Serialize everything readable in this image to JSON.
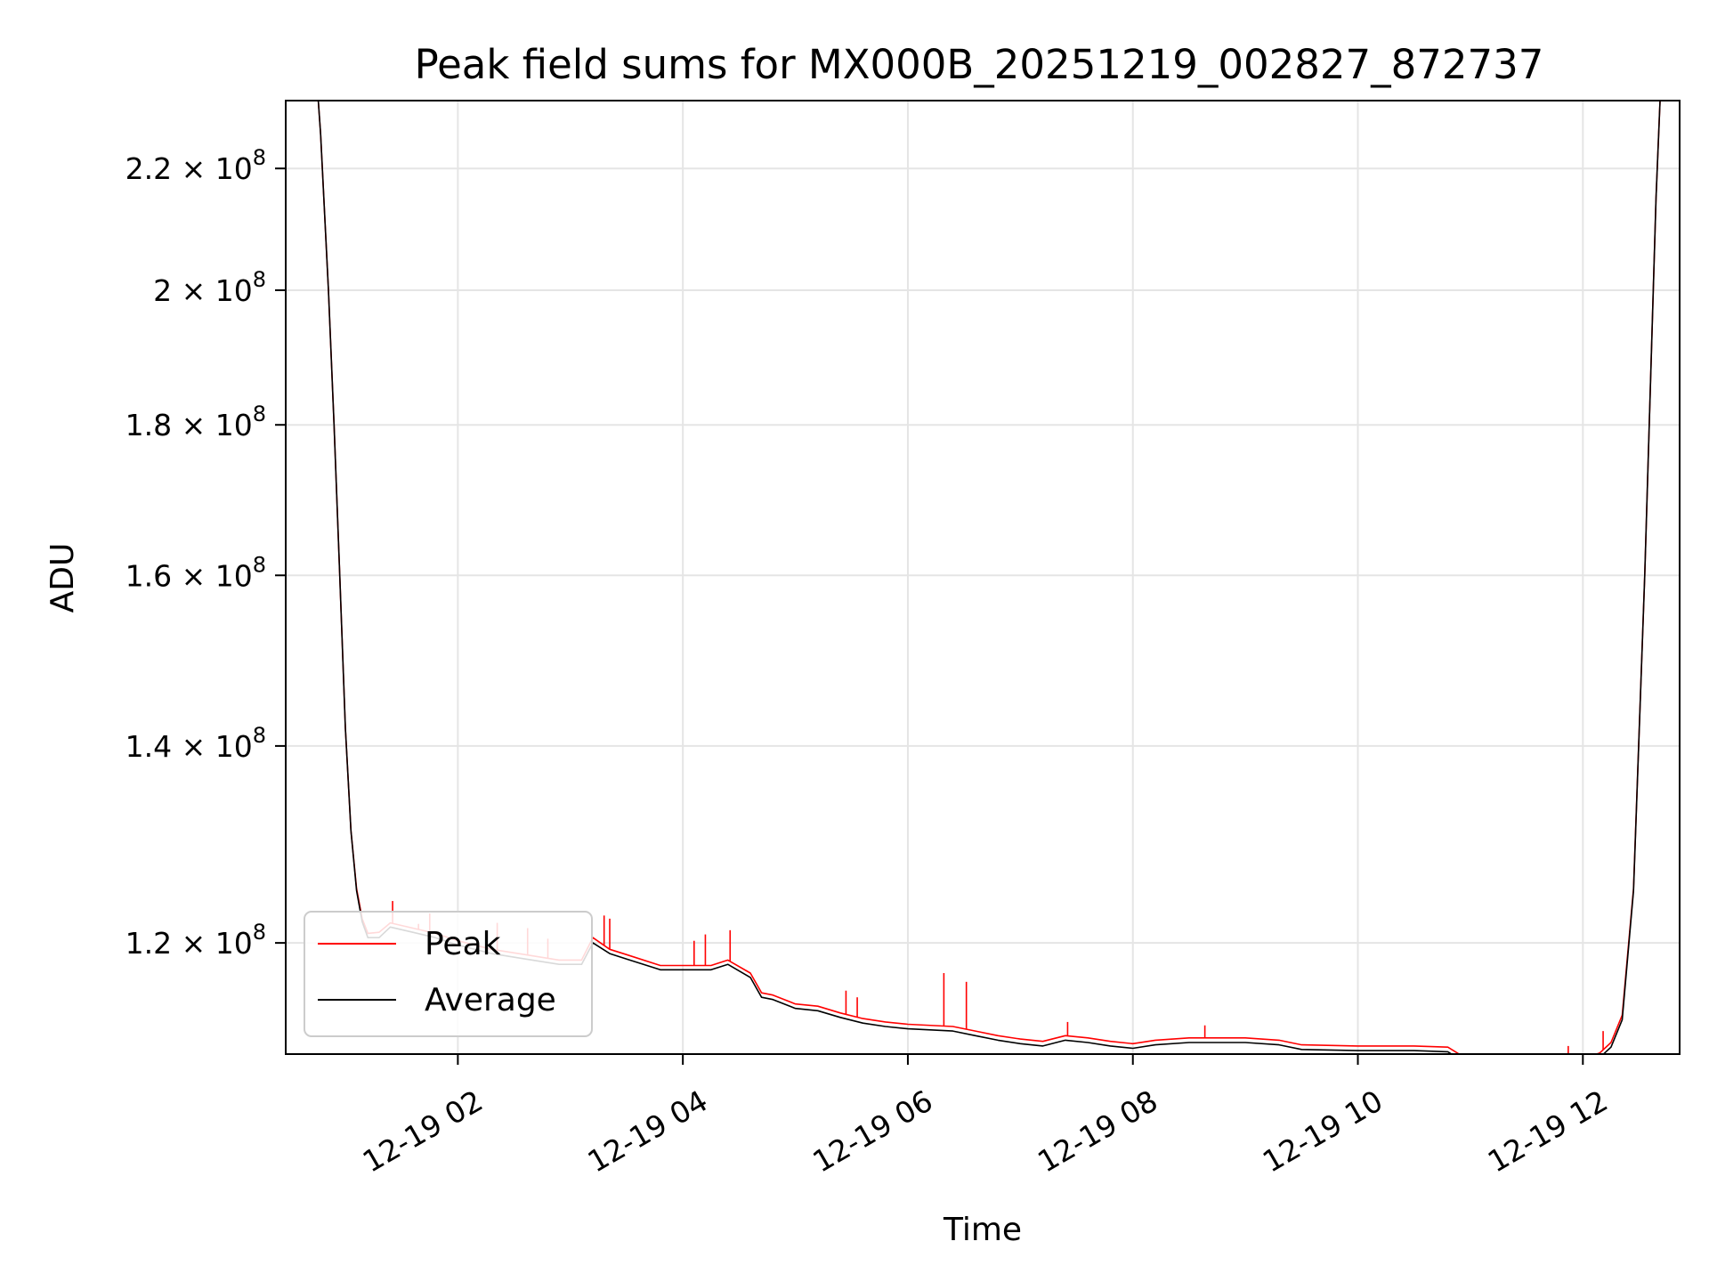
{
  "chart_data": {
    "type": "line",
    "title": "Peak field sums for MX000B_20251219_002827_872737",
    "xlabel": "Time",
    "ylabel": "ADU",
    "yscale": "log",
    "grid": true,
    "legend": {
      "placement": "lower-left",
      "entries": [
        {
          "name": "Peak",
          "color": "#ff0000"
        },
        {
          "name": "Average",
          "color": "#000000"
        }
      ]
    },
    "xlim_hours": [
      0.47,
      12.86
    ],
    "ylim": [
      110000000,
      232000000
    ],
    "x_ticks": [
      {
        "value": 2,
        "label": "12-19 02"
      },
      {
        "value": 4,
        "label": "12-19 04"
      },
      {
        "value": 6,
        "label": "12-19 06"
      },
      {
        "value": 8,
        "label": "12-19 08"
      },
      {
        "value": 10,
        "label": "12-19 10"
      },
      {
        "value": 12,
        "label": "12-19 12"
      }
    ],
    "y_ticks": [
      {
        "value": 120000000,
        "mantissa": "1.2",
        "exp": "8"
      },
      {
        "value": 140000000,
        "mantissa": "1.4",
        "exp": "8"
      },
      {
        "value": 160000000,
        "mantissa": "1.6",
        "exp": "8"
      },
      {
        "value": 180000000,
        "mantissa": "1.8",
        "exp": "8"
      },
      {
        "value": 200000000,
        "mantissa": "2",
        "exp": "8"
      },
      {
        "value": 220000000,
        "mantissa": "2.2",
        "exp": "8"
      }
    ],
    "series": [
      {
        "name": "Average",
        "color": "#000000",
        "x": [
          0.7,
          0.78,
          0.85,
          0.9,
          0.95,
          1.0,
          1.05,
          1.1,
          1.15,
          1.2,
          1.3,
          1.4,
          1.6,
          1.8,
          2.0,
          2.3,
          2.6,
          2.9,
          3.1,
          3.2,
          3.35,
          3.5,
          3.8,
          4.0,
          4.25,
          4.4,
          4.6,
          4.7,
          4.8,
          5.0,
          5.2,
          5.4,
          5.6,
          5.8,
          6.0,
          6.4,
          6.6,
          6.8,
          7.0,
          7.2,
          7.4,
          7.6,
          7.8,
          8.0,
          8.2,
          8.5,
          9.0,
          9.3,
          9.5,
          10.0,
          10.5,
          10.8,
          10.95,
          11.1,
          11.3,
          11.5,
          11.7,
          11.9,
          12.0,
          12.15,
          12.25,
          12.35,
          12.45,
          12.55,
          12.65,
          12.73
        ],
        "y": [
          250000000,
          226000000,
          200000000,
          180000000,
          160000000,
          142000000,
          131000000,
          125000000,
          122000000,
          120500000,
          120500000,
          121500000,
          121000000,
          120500000,
          119800000,
          119000000,
          118500000,
          118000000,
          118000000,
          120000000,
          119000000,
          118500000,
          117500000,
          117500000,
          117500000,
          118000000,
          116800000,
          115000000,
          114800000,
          114000000,
          113800000,
          113200000,
          112700000,
          112400000,
          112200000,
          112000000,
          111600000,
          111200000,
          110900000,
          110700000,
          111200000,
          111000000,
          110700000,
          110500000,
          110800000,
          111000000,
          111000000,
          110800000,
          110400000,
          110300000,
          110300000,
          110200000,
          109300000,
          109100000,
          109000000,
          108900000,
          109000000,
          109000000,
          109200000,
          109700000,
          110600000,
          113000000,
          125000000,
          160000000,
          215000000,
          255000000
        ]
      },
      {
        "name": "Peak",
        "color": "#ff0000",
        "x": [
          0.7,
          0.78,
          0.85,
          0.9,
          0.95,
          1.0,
          1.05,
          1.1,
          1.15,
          1.2,
          1.3,
          1.4,
          1.6,
          1.8,
          2.0,
          2.3,
          2.6,
          2.9,
          3.1,
          3.2,
          3.35,
          3.5,
          3.8,
          4.0,
          4.25,
          4.4,
          4.6,
          4.7,
          4.8,
          5.0,
          5.2,
          5.4,
          5.6,
          5.8,
          6.0,
          6.4,
          6.6,
          6.8,
          7.0,
          7.2,
          7.4,
          7.6,
          7.8,
          8.0,
          8.2,
          8.5,
          9.0,
          9.3,
          9.5,
          10.0,
          10.5,
          10.8,
          10.95,
          11.1,
          11.3,
          11.5,
          11.7,
          11.9,
          12.0,
          12.15,
          12.25,
          12.35,
          12.45,
          12.55,
          12.65,
          12.73
        ],
        "y": [
          250000000,
          226000000,
          200000000,
          180000000,
          160000000,
          142000000,
          131000000,
          125200000,
          122300000,
          120900000,
          121000000,
          121900000,
          121400000,
          120900000,
          120200000,
          119400000,
          118900000,
          118400000,
          118400000,
          120500000,
          119400000,
          118900000,
          117900000,
          117900000,
          117900000,
          118400000,
          117200000,
          115400000,
          115200000,
          114400000,
          114200000,
          113600000,
          113100000,
          112800000,
          112600000,
          112400000,
          112000000,
          111600000,
          111300000,
          111100000,
          111600000,
          111400000,
          111100000,
          110900000,
          111200000,
          111400000,
          111400000,
          111200000,
          110800000,
          110700000,
          110700000,
          110600000,
          109700000,
          109500000,
          109400000,
          109300000,
          109400000,
          109400000,
          109600000,
          110100000,
          111000000,
          113400000,
          125200000,
          160000000,
          215000000,
          255000000
        ]
      }
    ],
    "peak_spikes": [
      {
        "x": 1.42,
        "y": 124000000
      },
      {
        "x": 1.65,
        "y": 121800000
      },
      {
        "x": 1.75,
        "y": 122800000
      },
      {
        "x": 2.35,
        "y": 121900000
      },
      {
        "x": 2.62,
        "y": 121400000
      },
      {
        "x": 2.8,
        "y": 120400000
      },
      {
        "x": 3.3,
        "y": 122600000
      },
      {
        "x": 3.35,
        "y": 122300000
      },
      {
        "x": 4.1,
        "y": 120200000
      },
      {
        "x": 4.2,
        "y": 120800000
      },
      {
        "x": 4.42,
        "y": 121200000
      },
      {
        "x": 5.45,
        "y": 115600000
      },
      {
        "x": 5.55,
        "y": 115000000
      },
      {
        "x": 6.32,
        "y": 117200000
      },
      {
        "x": 6.52,
        "y": 116400000
      },
      {
        "x": 7.42,
        "y": 112800000
      },
      {
        "x": 8.64,
        "y": 112500000
      },
      {
        "x": 11.87,
        "y": 110700000
      },
      {
        "x": 12.18,
        "y": 112000000
      }
    ]
  }
}
